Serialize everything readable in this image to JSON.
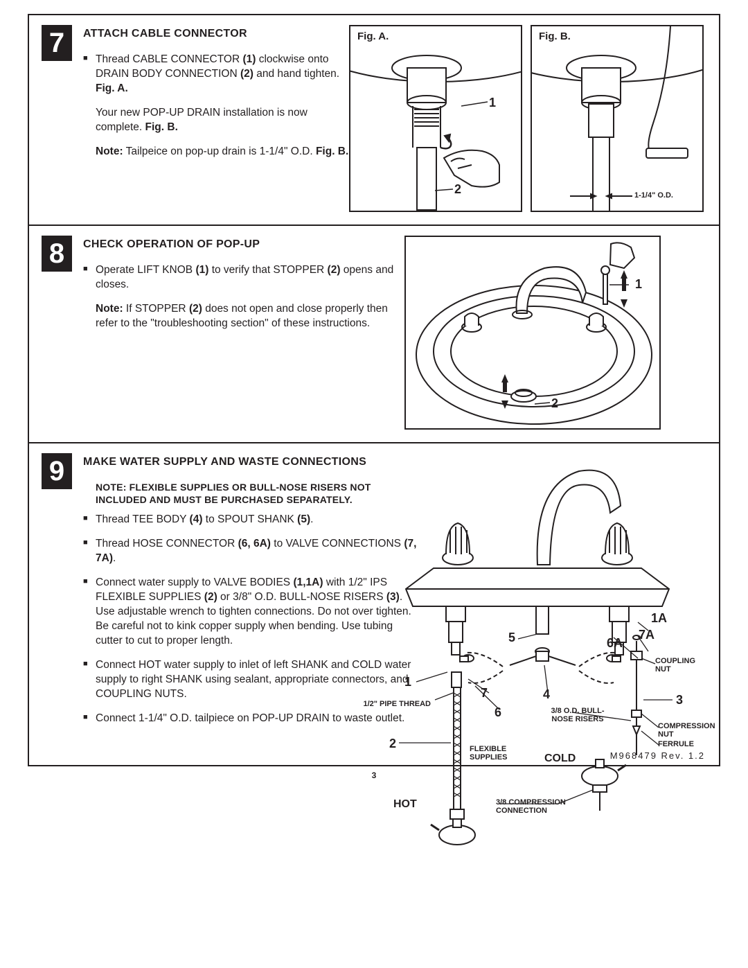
{
  "page": {
    "doc_id": "M968479 Rev. 1.2",
    "page_number": "3"
  },
  "step7": {
    "number": "7",
    "title": "ATTACH CABLE CONNECTOR",
    "bullet1_html": "Thread CABLE CONNECTOR <b>(1)</b> clockwise onto DRAIN BODY CONNECTION <b>(2)</b> and hand tighten. <b>Fig. A.</b>",
    "para2_html": "Your new POP-UP DRAIN installation is now complete. <b>Fig. B.</b>",
    "para3_html": "<b>Note:</b> Tailpeice on pop-up drain is 1-1/4\" O.D. <b>Fig. B.</b>",
    "figA_label": "Fig. A.",
    "figB_label": "Fig. B.",
    "callout_1": "1",
    "callout_2": "2",
    "od_label": "1-1/4\" O.D."
  },
  "step8": {
    "number": "8",
    "title": "CHECK OPERATION OF POP-UP",
    "bullet1_html": "Operate LIFT KNOB <b>(1)</b> to verify that STOPPER <b>(2)</b> opens and closes.",
    "para2_html": "<b>Note:</b> If STOPPER <b>(2)</b> does not open and close properly then refer to the \"troubleshooting section\" of these instructions.",
    "callout_1": "1",
    "callout_2": "2"
  },
  "step9": {
    "number": "9",
    "title": "MAKE WATER SUPPLY AND WASTE CONNECTIONS",
    "note_html": "NOTE: FLEXIBLE SUPPLIES OR BULL-NOSE RISERS NOT INCLUDED AND MUST BE PURCHASED SEPARATELY.",
    "bullet1_html": "Thread TEE BODY <b>(4)</b> to SPOUT SHANK <b>(5)</b>.",
    "bullet2_html": "Thread HOSE CONNECTOR <b>(6, 6A)</b> to VALVE CONNECTIONS <b>(7, 7A)</b>.",
    "bullet3_html": "Connect water supply to VALVE BODIES <b>(1,1A)</b> with 1/2\" IPS FLEXIBLE SUPPLIES <b>(2)</b> or 3/8\" O.D. BULL-NOSE RISERS <b>(3)</b>. Use adjustable wrench to tighten connections. Do not over tighten. Be careful not to kink copper supply when bending. Use tubing cutter to cut to proper length.",
    "bullet4_html": "Connect HOT water supply to inlet of left SHANK and COLD water supply to right SHANK using sealant, appropriate connectors, and COUPLING NUTS.",
    "bullet5_html": "Connect 1-1/4\" O.D. tailpiece on POP-UP DRAIN to waste outlet.",
    "labels": {
      "l1": "1",
      "l1A": "1A",
      "l2": "2",
      "l3": "3",
      "l4": "4",
      "l5": "5",
      "l6": "6",
      "l6A": "6A",
      "l7": "7",
      "l7A": "7A",
      "pipe_thread": "1/2\" PIPE THREAD",
      "flexible": "FLEXIBLE SUPPLIES",
      "bullnose": "3/8 O.D. BULL-NOSE RISERS",
      "coupling": "COUPLING NUT",
      "compression_nut": "COMPRESSION NUT",
      "ferrule": "FERRULE",
      "compression_conn": "3/8 COMPRESSION CONNECTION",
      "hot": "HOT",
      "cold": "COLD"
    }
  },
  "colors": {
    "stroke": "#231f20",
    "bg": "#ffffff"
  }
}
